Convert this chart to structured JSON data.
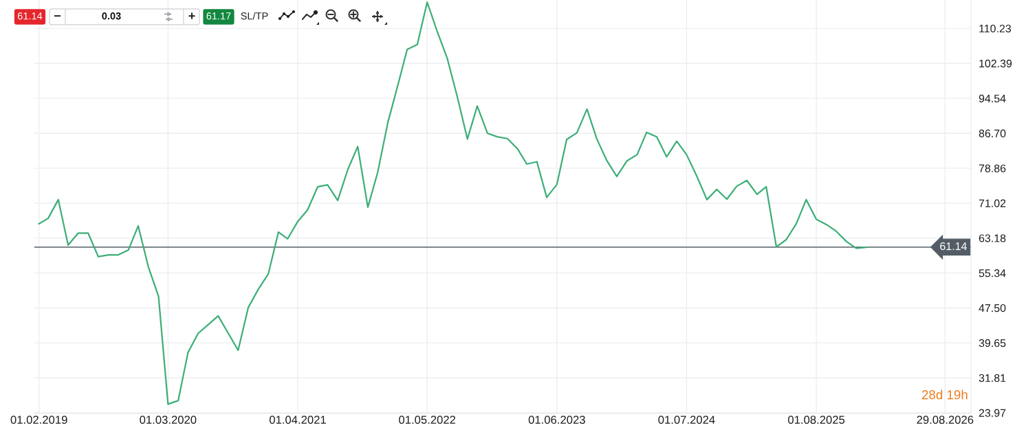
{
  "chart_data": {
    "type": "line",
    "x": [
      "2019-02",
      "2019-03",
      "2019-04",
      "2019-05",
      "2019-06",
      "2019-07",
      "2019-08",
      "2019-09",
      "2019-10",
      "2019-11",
      "2019-12",
      "2020-01",
      "2020-02",
      "2020-03",
      "2020-04",
      "2020-05",
      "2020-06",
      "2020-07",
      "2020-08",
      "2020-09",
      "2020-10",
      "2020-11",
      "2020-12",
      "2021-01",
      "2021-02",
      "2021-03",
      "2021-04",
      "2021-05",
      "2021-06",
      "2021-07",
      "2021-08",
      "2021-09",
      "2021-10",
      "2021-11",
      "2021-12",
      "2022-01",
      "2022-02",
      "2022-03",
      "2022-04",
      "2022-05",
      "2022-06",
      "2022-07",
      "2022-08",
      "2022-09",
      "2022-10",
      "2022-11",
      "2022-12",
      "2023-01",
      "2023-02",
      "2023-03",
      "2023-04",
      "2023-05",
      "2023-06",
      "2023-07",
      "2023-08",
      "2023-09",
      "2023-10",
      "2023-11",
      "2023-12",
      "2024-01",
      "2024-02",
      "2024-03",
      "2024-04",
      "2024-05",
      "2024-06",
      "2024-07",
      "2024-08",
      "2024-09",
      "2024-10",
      "2024-11",
      "2024-12",
      "2025-01",
      "2025-02",
      "2025-03",
      "2025-04",
      "2025-05",
      "2025-06",
      "2025-07",
      "2025-08",
      "2025-09",
      "2025-10",
      "2025-11",
      "2025-12",
      "2026-01"
    ],
    "series": [
      {
        "color": "#3cae77",
        "values": [
          66.4,
          67.6,
          71.8,
          61.6,
          64.3,
          64.3,
          59.0,
          59.4,
          59.4,
          60.5,
          65.9,
          56.7,
          50.1,
          25.9,
          26.7,
          37.5,
          41.8,
          43.7,
          45.7,
          41.8,
          38.0,
          47.6,
          51.6,
          55.1,
          64.5,
          63.0,
          66.9,
          69.5,
          74.7,
          75.1,
          71.6,
          78.6,
          83.7,
          70.1,
          77.9,
          89.1,
          97.6,
          105.5,
          106.6,
          116.1,
          109.5,
          103.6,
          94.9,
          85.4,
          92.8,
          86.7,
          85.9,
          85.5,
          83.2,
          79.8,
          80.3,
          72.3,
          75.2,
          85.3,
          86.8,
          92.1,
          85.4,
          80.5,
          77.0,
          80.5,
          81.9,
          86.9,
          85.9,
          81.4,
          84.9,
          81.9,
          77.1,
          71.8,
          74.1,
          71.9,
          74.8,
          76.1,
          73.0,
          74.7,
          61.2,
          62.8,
          66.4,
          71.8,
          67.4,
          66.2,
          64.7,
          62.4,
          60.9,
          61.1
        ]
      }
    ],
    "xlim": [
      "2019-01-18",
      "2026-11-16"
    ],
    "xticks": [
      {
        "value": "2019-02-01",
        "label": "01.02.2019"
      },
      {
        "value": "2020-03-01",
        "label": "01.03.2020"
      },
      {
        "value": "2021-04-01",
        "label": "01.04.2021"
      },
      {
        "value": "2022-05-01",
        "label": "01.05.2022"
      },
      {
        "value": "2023-06-01",
        "label": "01.06.2023"
      },
      {
        "value": "2024-07-01",
        "label": "01.07.2024"
      },
      {
        "value": "2025-08-01",
        "label": "01.08.2025"
      },
      {
        "value": "2026-08-29",
        "label": "29.08.2026"
      }
    ],
    "ylim": [
      23.8,
      116.6
    ],
    "yticks": [
      23.97,
      31.81,
      39.65,
      {
        "value": 47.5,
        "label": "47.50"
      },
      55.34,
      63.18,
      71.02,
      78.86,
      {
        "value": 86.7,
        "label": "86.70"
      },
      94.54,
      102.39,
      110.23
    ],
    "grid": true,
    "line_style": "solid",
    "ref_lines": [
      {
        "axis": "y",
        "value": 61.14,
        "label": "61.14",
        "color": "#545d65"
      }
    ],
    "annotations": [
      "61.14",
      "−",
      "0.03",
      "+",
      "61.17",
      "SL/TP",
      "28d 19h"
    ]
  }
}
